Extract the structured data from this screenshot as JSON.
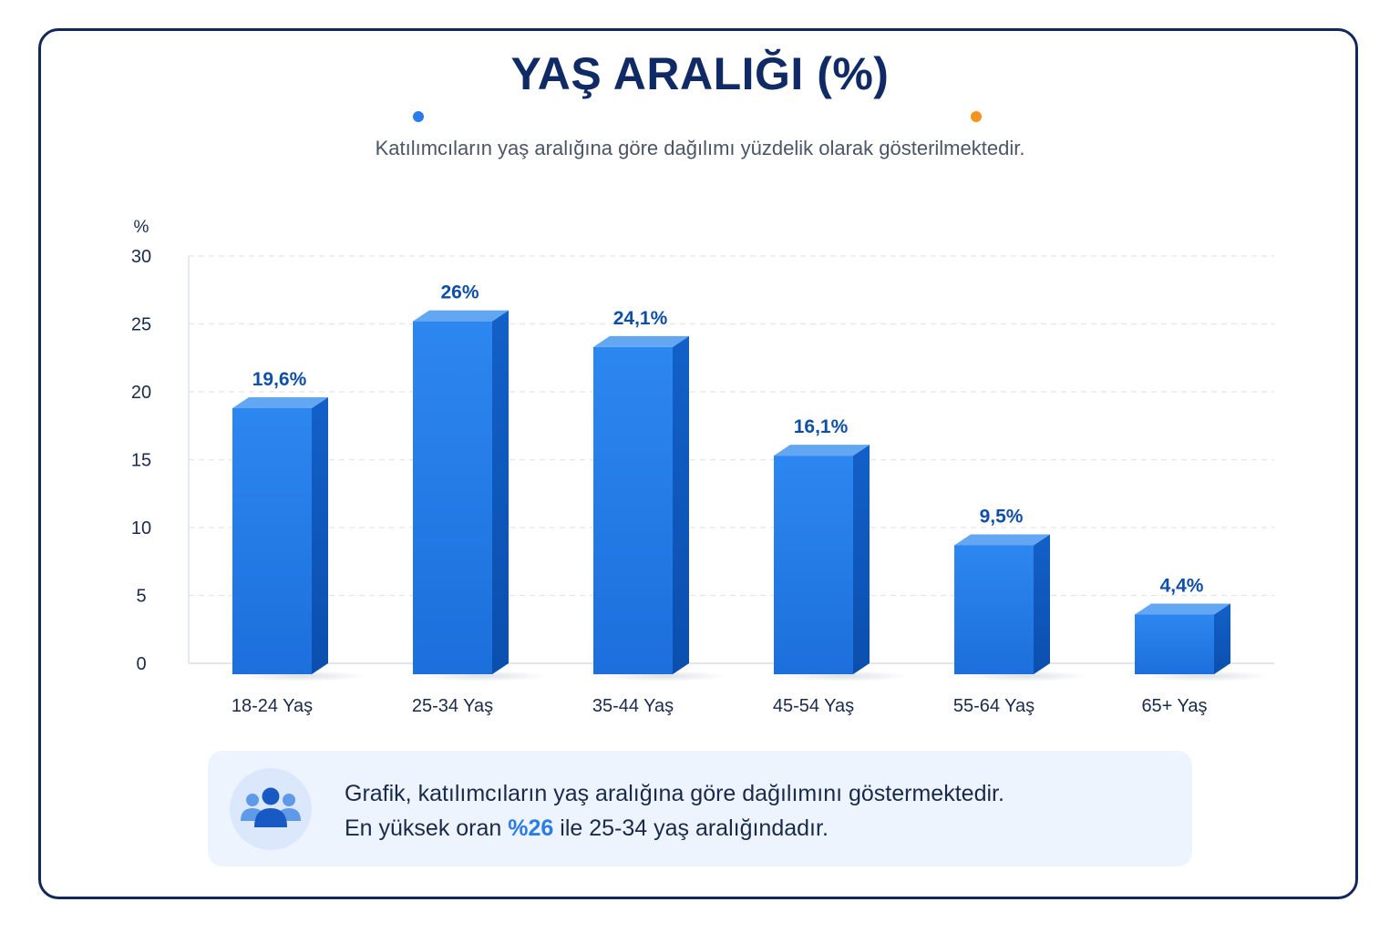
{
  "header": {
    "title": "YAŞ ARALIĞI (%)",
    "subtitle": "Katılımcıların yaş aralığına göre dağılımı yüzdelik olarak gösterilmektedir."
  },
  "colors": {
    "title": "#102a66",
    "bar_front": "#2a80ec",
    "bar_side": "#0f5bc2",
    "bar_top": "#5ea2f2",
    "value_label": "#0f4fa8",
    "divider_left": "#2b7be8",
    "divider_right": "#f5931e",
    "card_border": "#14275a"
  },
  "chart_data": {
    "type": "bar",
    "title": "YAŞ ARALIĞI (%)",
    "ylabel": "%",
    "xlabel": "",
    "ylim": [
      0,
      30
    ],
    "yticks": [
      0,
      5,
      10,
      15,
      20,
      25,
      30
    ],
    "categories": [
      "18-24 Yaş",
      "25-34 Yaş",
      "35-44 Yaş",
      "45-54 Yaş",
      "55-64 Yaş",
      "65+ Yaş"
    ],
    "values": [
      19.6,
      26,
      24.1,
      16.1,
      9.5,
      4.4
    ],
    "value_labels": [
      "19,6%",
      "26%",
      "24,1%",
      "16,1%",
      "9,5%",
      "4,4%"
    ],
    "grid": true,
    "legend": "none"
  },
  "note": {
    "icon": "users-group-icon",
    "line1": "Grafik, katılımcıların yaş aralığına göre dağılımını göstermektedir.",
    "line2_prefix": "En yüksek oran ",
    "line2_highlight": "%26",
    "line2_suffix": " ile 25-34 yaş aralığındadır."
  }
}
